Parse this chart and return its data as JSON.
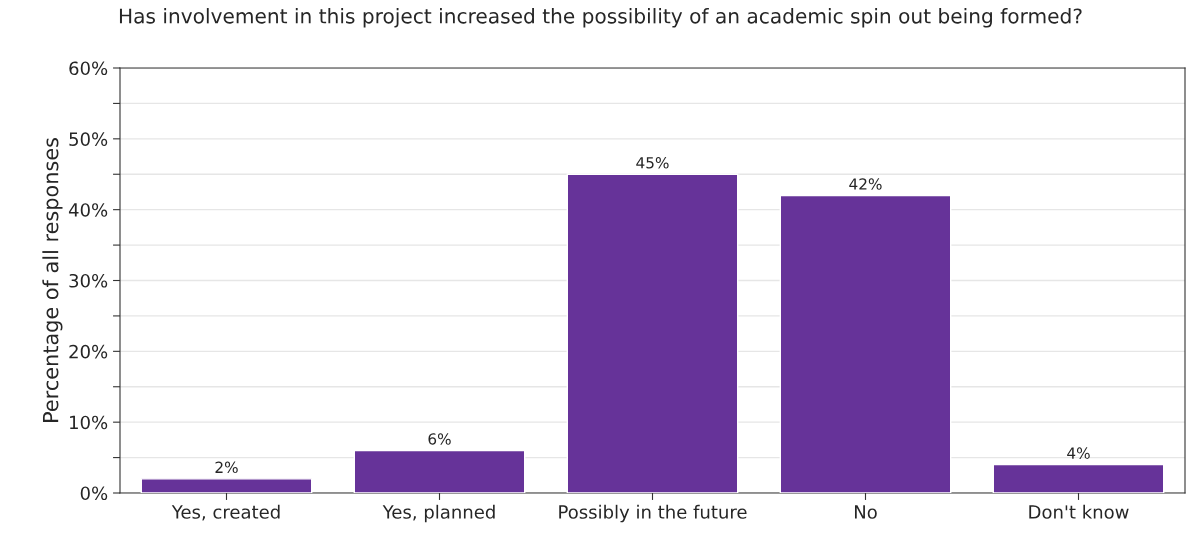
{
  "chart_data": {
    "type": "bar",
    "title": "Has involvement in this project increased the possibility of an academic spin out being formed?",
    "ylabel": "Percentage of all responses",
    "categories": [
      "Yes, created",
      "Yes, planned",
      "Possibly in the future",
      "No",
      "Don't know"
    ],
    "values": [
      2,
      6,
      45,
      42,
      4
    ],
    "value_labels": [
      "2%",
      "6%",
      "45%",
      "42%",
      "4%"
    ],
    "color": "#663399",
    "ylim": [
      0,
      60
    ],
    "yticks": [
      {
        "value": 0,
        "label": "0%"
      },
      {
        "value": 5,
        "label": null
      },
      {
        "value": 10,
        "label": "10%"
      },
      {
        "value": 15,
        "label": null
      },
      {
        "value": 20,
        "label": "20%"
      },
      {
        "value": 25,
        "label": null
      },
      {
        "value": 30,
        "label": "30%"
      },
      {
        "value": 35,
        "label": null
      },
      {
        "value": 40,
        "label": "40%"
      },
      {
        "value": 45,
        "label": null
      },
      {
        "value": 50,
        "label": "50%"
      },
      {
        "value": 55,
        "label": null
      },
      {
        "value": 60,
        "label": "60%"
      }
    ],
    "grid": "y"
  }
}
